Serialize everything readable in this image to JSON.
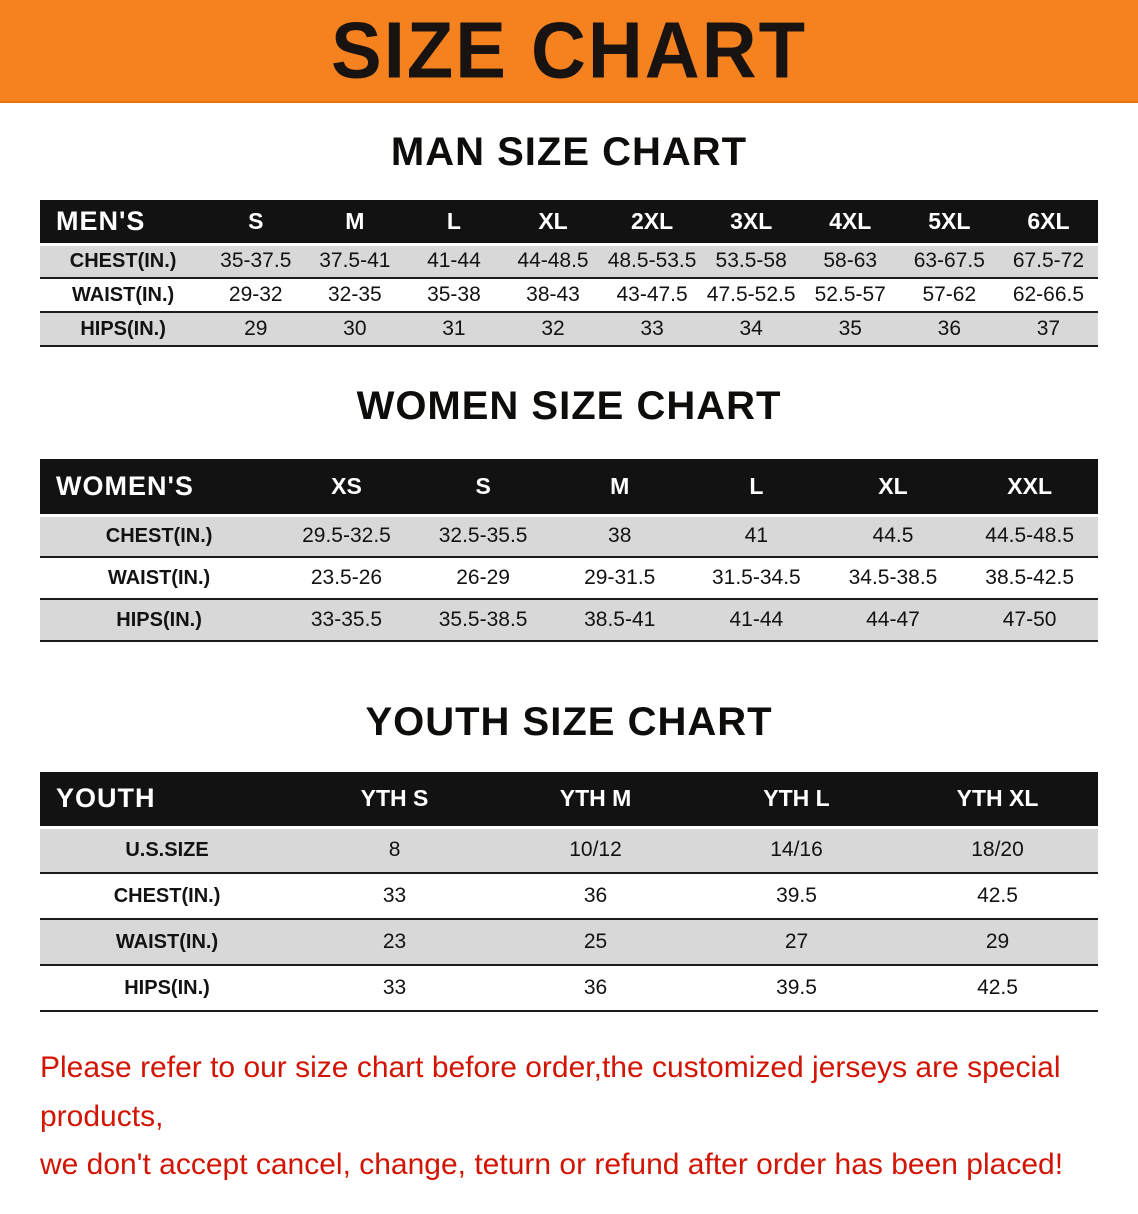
{
  "banner": {
    "title": "SIZE CHART",
    "bg_color": "#f5821f"
  },
  "sections": {
    "men": {
      "heading": "MAN SIZE CHART",
      "table": {
        "header": [
          "MEN'S",
          "S",
          "M",
          "L",
          "XL",
          "2XL",
          "3XL",
          "4XL",
          "5XL",
          "6XL"
        ],
        "rows": [
          {
            "label": "CHEST(IN.)",
            "values": [
              "35-37.5",
              "37.5-41",
              "41-44",
              "44-48.5",
              "48.5-53.5",
              "53.5-58",
              "58-63",
              "63-67.5",
              "67.5-72"
            ]
          },
          {
            "label": "WAIST(IN.)",
            "values": [
              "29-32",
              "32-35",
              "35-38",
              "38-43",
              "43-47.5",
              "47.5-52.5",
              "52.5-57",
              "57-62",
              "62-66.5"
            ]
          },
          {
            "label": "HIPS(IN.)",
            "values": [
              "29",
              "30",
              "31",
              "32",
              "33",
              "34",
              "35",
              "36",
              "37"
            ]
          }
        ]
      }
    },
    "women": {
      "heading": "WOMEN SIZE CHART",
      "table": {
        "header": [
          "WOMEN'S",
          "XS",
          "S",
          "M",
          "L",
          "XL",
          "XXL"
        ],
        "rows": [
          {
            "label": "CHEST(IN.)",
            "values": [
              "29.5-32.5",
              "32.5-35.5",
              "38",
              "41",
              "44.5",
              "44.5-48.5"
            ]
          },
          {
            "label": "WAIST(IN.)",
            "values": [
              "23.5-26",
              "26-29",
              "29-31.5",
              "31.5-34.5",
              "34.5-38.5",
              "38.5-42.5"
            ]
          },
          {
            "label": "HIPS(IN.)",
            "values": [
              "33-35.5",
              "35.5-38.5",
              "38.5-41",
              "41-44",
              "44-47",
              "47-50"
            ]
          }
        ]
      }
    },
    "youth": {
      "heading": "YOUTH SIZE CHART",
      "table": {
        "header": [
          "YOUTH",
          "YTH S",
          "YTH M",
          "YTH L",
          "YTH XL"
        ],
        "rows": [
          {
            "label": "U.S.SIZE",
            "values": [
              "8",
              "10/12",
              "14/16",
              "18/20"
            ]
          },
          {
            "label": "CHEST(IN.)",
            "values": [
              "33",
              "36",
              "39.5",
              "42.5"
            ]
          },
          {
            "label": "WAIST(IN.)",
            "values": [
              "23",
              "25",
              "27",
              "29"
            ]
          },
          {
            "label": "HIPS(IN.)",
            "values": [
              "33",
              "36",
              "39.5",
              "42.5"
            ]
          }
        ]
      }
    }
  },
  "disclaimer": {
    "text_color": "#d21404",
    "line1": "Please refer to our size chart before order,the customized jerseys are special products,",
    "line2": "we don't accept cancel, change, teturn or refund after order has been placed!"
  }
}
